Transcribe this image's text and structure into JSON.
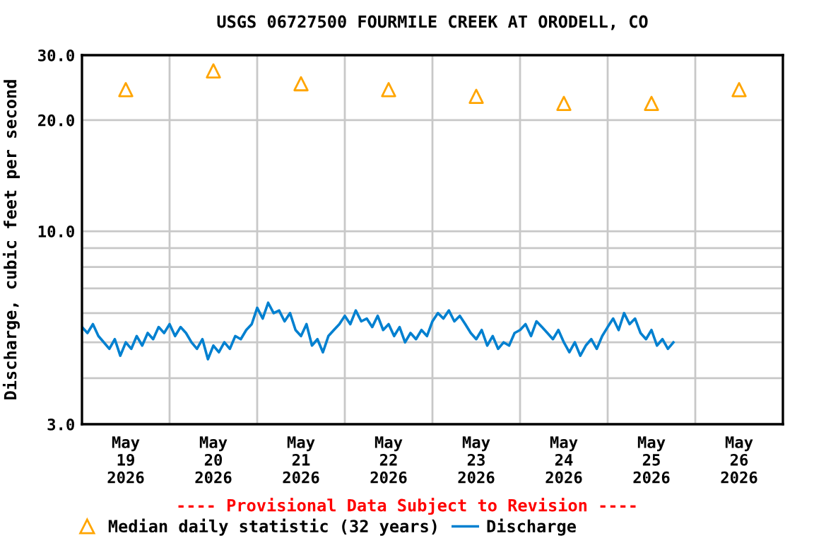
{
  "chart_data": {
    "type": "line",
    "title": "USGS 06727500 FOURMILE CREEK AT ORODELL, CO",
    "ylabel": "Discharge, cubic feet per second",
    "annotations": [
      "---- Provisional Data Subject to Revision ----"
    ],
    "log": "y",
    "grid": true,
    "legend": "bottom",
    "xlim": [
      "2026-05-19T00:00",
      "2026-05-27T00:00"
    ],
    "xticks": [
      {
        "value": "2026-05-19T00:00",
        "label": null
      },
      {
        "value": "2026-05-19T12:00",
        "label": "May\n19\n2026"
      },
      {
        "value": "2026-05-20T00:00",
        "label": null
      },
      {
        "value": "2026-05-20T12:00",
        "label": "May\n20\n2026"
      },
      {
        "value": "2026-05-21T00:00",
        "label": null
      },
      {
        "value": "2026-05-21T12:00",
        "label": "May\n21\n2026"
      },
      {
        "value": "2026-05-22T00:00",
        "label": null
      },
      {
        "value": "2026-05-22T12:00",
        "label": "May\n22\n2026"
      },
      {
        "value": "2026-05-23T00:00",
        "label": null
      },
      {
        "value": "2026-05-23T12:00",
        "label": "May\n23\n2026"
      },
      {
        "value": "2026-05-24T00:00",
        "label": null
      },
      {
        "value": "2026-05-24T12:00",
        "label": "May\n24\n2026"
      },
      {
        "value": "2026-05-25T00:00",
        "label": null
      },
      {
        "value": "2026-05-25T12:00",
        "label": "May\n25\n2026"
      },
      {
        "value": "2026-05-26T00:00",
        "label": null
      },
      {
        "value": "2026-05-26T12:00",
        "label": "May\n26\n2026"
      },
      {
        "value": "2026-05-27T00:00",
        "label": null
      }
    ],
    "ylim": [
      3,
      30
    ],
    "yticks": [
      {
        "value": 3,
        "label": "3.0"
      },
      {
        "value": 4,
        "label": null
      },
      {
        "value": 5,
        "label": null
      },
      {
        "value": 6,
        "label": null
      },
      {
        "value": 7,
        "label": null
      },
      {
        "value": 8,
        "label": null
      },
      {
        "value": 9,
        "label": null
      },
      {
        "value": 10,
        "label": "10.0"
      },
      {
        "value": 20,
        "label": "20.0"
      },
      {
        "value": 30,
        "label": "30.0"
      }
    ],
    "series": [
      {
        "name": "Median daily statistic (32 years)",
        "type": "scatter",
        "marker": "triangle",
        "color": "#ffa500",
        "x": [
          "2026-05-19T12:00",
          "2026-05-20T12:00",
          "2026-05-21T12:00",
          "2026-05-22T12:00",
          "2026-05-23T12:00",
          "2026-05-24T12:00",
          "2026-05-25T12:00",
          "2026-05-26T12:00"
        ],
        "values": [
          24.2,
          27.2,
          25.1,
          24.2,
          23.2,
          22.2,
          22.2,
          24.2
        ]
      },
      {
        "name": "Discharge",
        "color": "#0080d0",
        "x": [
          "2026-05-19T00:00",
          "2026-05-19T01:30",
          "2026-05-19T03:00",
          "2026-05-19T04:30",
          "2026-05-19T06:00",
          "2026-05-19T07:30",
          "2026-05-19T09:00",
          "2026-05-19T10:30",
          "2026-05-19T12:00",
          "2026-05-19T13:30",
          "2026-05-19T15:00",
          "2026-05-19T16:30",
          "2026-05-19T18:00",
          "2026-05-19T19:30",
          "2026-05-19T21:00",
          "2026-05-19T22:30",
          "2026-05-20T00:00",
          "2026-05-20T01:30",
          "2026-05-20T03:00",
          "2026-05-20T04:30",
          "2026-05-20T06:00",
          "2026-05-20T07:30",
          "2026-05-20T09:00",
          "2026-05-20T10:30",
          "2026-05-20T12:00",
          "2026-05-20T13:30",
          "2026-05-20T15:00",
          "2026-05-20T16:30",
          "2026-05-20T18:00",
          "2026-05-20T19:30",
          "2026-05-20T21:00",
          "2026-05-20T22:30",
          "2026-05-21T00:00",
          "2026-05-21T01:30",
          "2026-05-21T03:00",
          "2026-05-21T04:30",
          "2026-05-21T06:00",
          "2026-05-21T07:30",
          "2026-05-21T09:00",
          "2026-05-21T10:30",
          "2026-05-21T12:00",
          "2026-05-21T13:30",
          "2026-05-21T15:00",
          "2026-05-21T16:30",
          "2026-05-21T18:00",
          "2026-05-21T19:30",
          "2026-05-21T21:00",
          "2026-05-21T22:30",
          "2026-05-22T00:00",
          "2026-05-22T01:30",
          "2026-05-22T03:00",
          "2026-05-22T04:30",
          "2026-05-22T06:00",
          "2026-05-22T07:30",
          "2026-05-22T09:00",
          "2026-05-22T10:30",
          "2026-05-22T12:00",
          "2026-05-22T13:30",
          "2026-05-22T15:00",
          "2026-05-22T16:30",
          "2026-05-22T18:00",
          "2026-05-22T19:30",
          "2026-05-22T21:00",
          "2026-05-22T22:30",
          "2026-05-23T00:00",
          "2026-05-23T01:30",
          "2026-05-23T03:00",
          "2026-05-23T04:30",
          "2026-05-23T06:00",
          "2026-05-23T07:30",
          "2026-05-23T09:00",
          "2026-05-23T10:30",
          "2026-05-23T12:00",
          "2026-05-23T13:30",
          "2026-05-23T15:00",
          "2026-05-23T16:30",
          "2026-05-23T18:00",
          "2026-05-23T19:30",
          "2026-05-23T21:00",
          "2026-05-23T22:30",
          "2026-05-24T00:00",
          "2026-05-24T01:30",
          "2026-05-24T03:00",
          "2026-05-24T04:30",
          "2026-05-24T06:00",
          "2026-05-24T07:30",
          "2026-05-24T09:00",
          "2026-05-24T10:30",
          "2026-05-24T12:00",
          "2026-05-24T13:30",
          "2026-05-24T15:00",
          "2026-05-24T16:30",
          "2026-05-24T18:00",
          "2026-05-24T19:30",
          "2026-05-24T21:00",
          "2026-05-24T22:30",
          "2026-05-25T00:00",
          "2026-05-25T01:30",
          "2026-05-25T03:00",
          "2026-05-25T04:30",
          "2026-05-25T06:00",
          "2026-05-25T07:30",
          "2026-05-25T09:00",
          "2026-05-25T10:30",
          "2026-05-25T12:00",
          "2026-05-25T13:30",
          "2026-05-25T15:00",
          "2026-05-25T16:30",
          "2026-05-25T18:00"
        ],
        "values": [
          5.5,
          5.3,
          5.6,
          5.2,
          5.0,
          4.8,
          5.1,
          4.6,
          5.0,
          4.8,
          5.2,
          4.9,
          5.3,
          5.1,
          5.5,
          5.3,
          5.6,
          5.2,
          5.5,
          5.3,
          5.0,
          4.8,
          5.1,
          4.5,
          4.9,
          4.7,
          5.0,
          4.8,
          5.2,
          5.1,
          5.4,
          5.6,
          6.2,
          5.8,
          6.4,
          6.0,
          6.1,
          5.7,
          6.0,
          5.4,
          5.2,
          5.6,
          4.9,
          5.1,
          4.7,
          5.2,
          5.4,
          5.6,
          5.9,
          5.6,
          6.1,
          5.7,
          5.8,
          5.5,
          5.9,
          5.4,
          5.6,
          5.2,
          5.5,
          5.0,
          5.3,
          5.1,
          5.4,
          5.2,
          5.7,
          6.0,
          5.8,
          6.1,
          5.7,
          5.9,
          5.6,
          5.3,
          5.1,
          5.4,
          4.9,
          5.2,
          4.8,
          5.0,
          4.9,
          5.3,
          5.4,
          5.6,
          5.2,
          5.7,
          5.5,
          5.3,
          5.1,
          5.4,
          5.0,
          4.7,
          5.0,
          4.6,
          4.9,
          5.1,
          4.8,
          5.2,
          5.5,
          5.8,
          5.4,
          6.0,
          5.6,
          5.8,
          5.3,
          5.1,
          5.4,
          4.9,
          5.1,
          4.8,
          5.0
        ]
      }
    ]
  }
}
